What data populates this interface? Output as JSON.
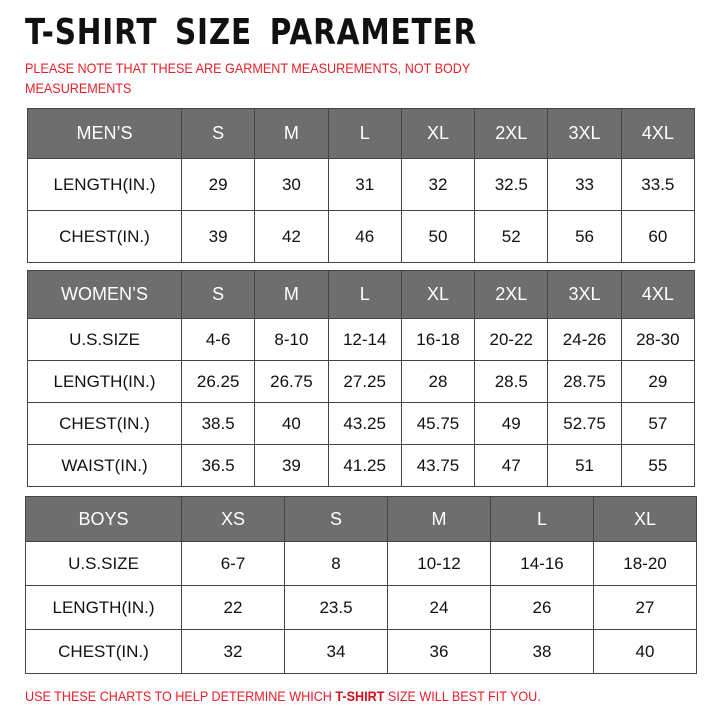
{
  "title": "T-SHIRT SIZE PARAMETER",
  "note": "PLEASE NOTE THAT THESE ARE GARMENT MEASUREMENTS, NOT BODY MEASUREMENTS",
  "footer": {
    "before": "USE THESE CHARTS TO HELP DETERMINE WHICH ",
    "highlight": "T-SHIRT",
    "after": " SIZE WILL BEST FIT YOU."
  },
  "colors": {
    "header_bg": "#6e6e6e",
    "note_red": "#e8202a"
  },
  "men": {
    "header": [
      "MEN’S",
      "S",
      "M",
      "L",
      "XL",
      "2XL",
      "3XL",
      "4XL"
    ],
    "rows": [
      [
        "LENGTH(IN.)",
        "29",
        "30",
        "31",
        "32",
        "32.5",
        "33",
        "33.5"
      ],
      [
        "CHEST(IN.)",
        "39",
        "42",
        "46",
        "50",
        "52",
        "56",
        "60"
      ]
    ]
  },
  "women": {
    "header": [
      "WOMEN’S",
      "S",
      "M",
      "L",
      "XL",
      "2XL",
      "3XL",
      "4XL"
    ],
    "rows": [
      [
        "U.S.SIZE",
        "4-6",
        "8-10",
        "12-14",
        "16-18",
        "20-22",
        "24-26",
        "28-30"
      ],
      [
        "LENGTH(IN.)",
        "26.25",
        "26.75",
        "27.25",
        "28",
        "28.5",
        "28.75",
        "29"
      ],
      [
        "CHEST(IN.)",
        "38.5",
        "40",
        "43.25",
        "45.75",
        "49",
        "52.75",
        "57"
      ],
      [
        "WAIST(IN.)",
        "36.5",
        "39",
        "41.25",
        "43.75",
        "47",
        "51",
        "55"
      ]
    ]
  },
  "boys": {
    "header": [
      "BOYS",
      "XS",
      "S",
      "M",
      "L",
      "XL"
    ],
    "rows": [
      [
        "U.S.SIZE",
        "6-7",
        "8",
        "10-12",
        "14-16",
        "18-20"
      ],
      [
        "LENGTH(IN.)",
        "22",
        "23.5",
        "24",
        "26",
        "27"
      ],
      [
        "CHEST(IN.)",
        "32",
        "34",
        "36",
        "38",
        "40"
      ]
    ]
  }
}
